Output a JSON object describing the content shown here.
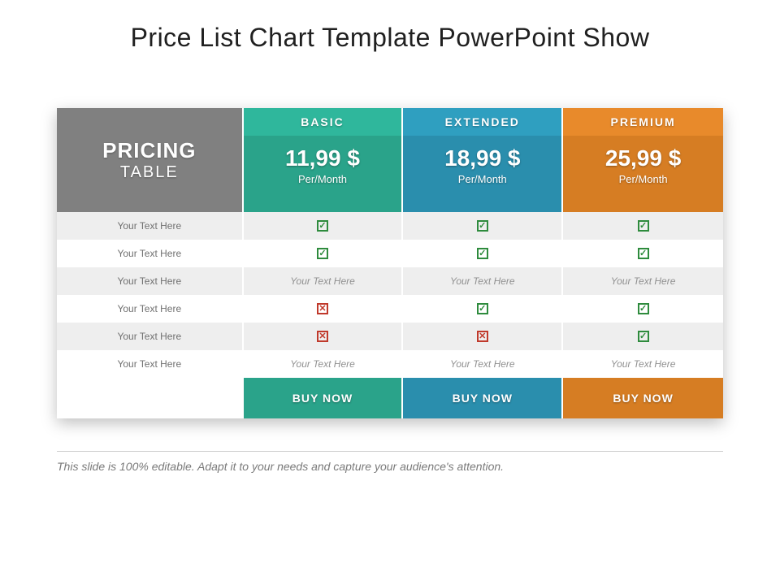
{
  "title": "Price List Chart Template PowerPoint Show",
  "pricing_label": {
    "line1": "PRICING",
    "line2": "TABLE"
  },
  "colors": {
    "label_bg": "#808080",
    "row_even": "#eeeeee",
    "row_odd": "#ffffff",
    "check": "#2e8b3d",
    "cross": "#c0392b"
  },
  "plans": [
    {
      "id": "basic",
      "name": "BASIC",
      "price": "11,99 $",
      "period": "Per/Month",
      "name_bg": "#2fb79c",
      "price_bg": "#2aa38a",
      "buy_bg": "#2aa38a",
      "buy_label": "BUY NOW"
    },
    {
      "id": "extended",
      "name": "EXTENDED",
      "price": "18,99 $",
      "period": "Per/Month",
      "name_bg": "#2f9fc0",
      "price_bg": "#2a8ead",
      "buy_bg": "#2a8ead",
      "buy_label": "BUY NOW"
    },
    {
      "id": "premium",
      "name": "PREMIUM",
      "price": "25,99 $",
      "period": "Per/Month",
      "name_bg": "#e88a2b",
      "price_bg": "#d67d23",
      "buy_bg": "#d67d23",
      "buy_label": "BUY NOW"
    }
  ],
  "features": [
    {
      "label": "Your Text Here",
      "cells": [
        "check",
        "check",
        "check"
      ]
    },
    {
      "label": "Your Text Here",
      "cells": [
        "check",
        "check",
        "check"
      ]
    },
    {
      "label": "Your Text Here",
      "cells": [
        "text",
        "text",
        "text"
      ],
      "text": "Your Text Here"
    },
    {
      "label": "Your Text Here",
      "cells": [
        "cross",
        "check",
        "check"
      ]
    },
    {
      "label": "Your Text Here",
      "cells": [
        "cross",
        "cross",
        "check"
      ]
    },
    {
      "label": "Your Text Here",
      "cells": [
        "text",
        "text",
        "text"
      ],
      "text": "Your Text Here"
    }
  ],
  "footnote": "This slide is 100% editable. Adapt it to your needs and capture your audience's attention."
}
